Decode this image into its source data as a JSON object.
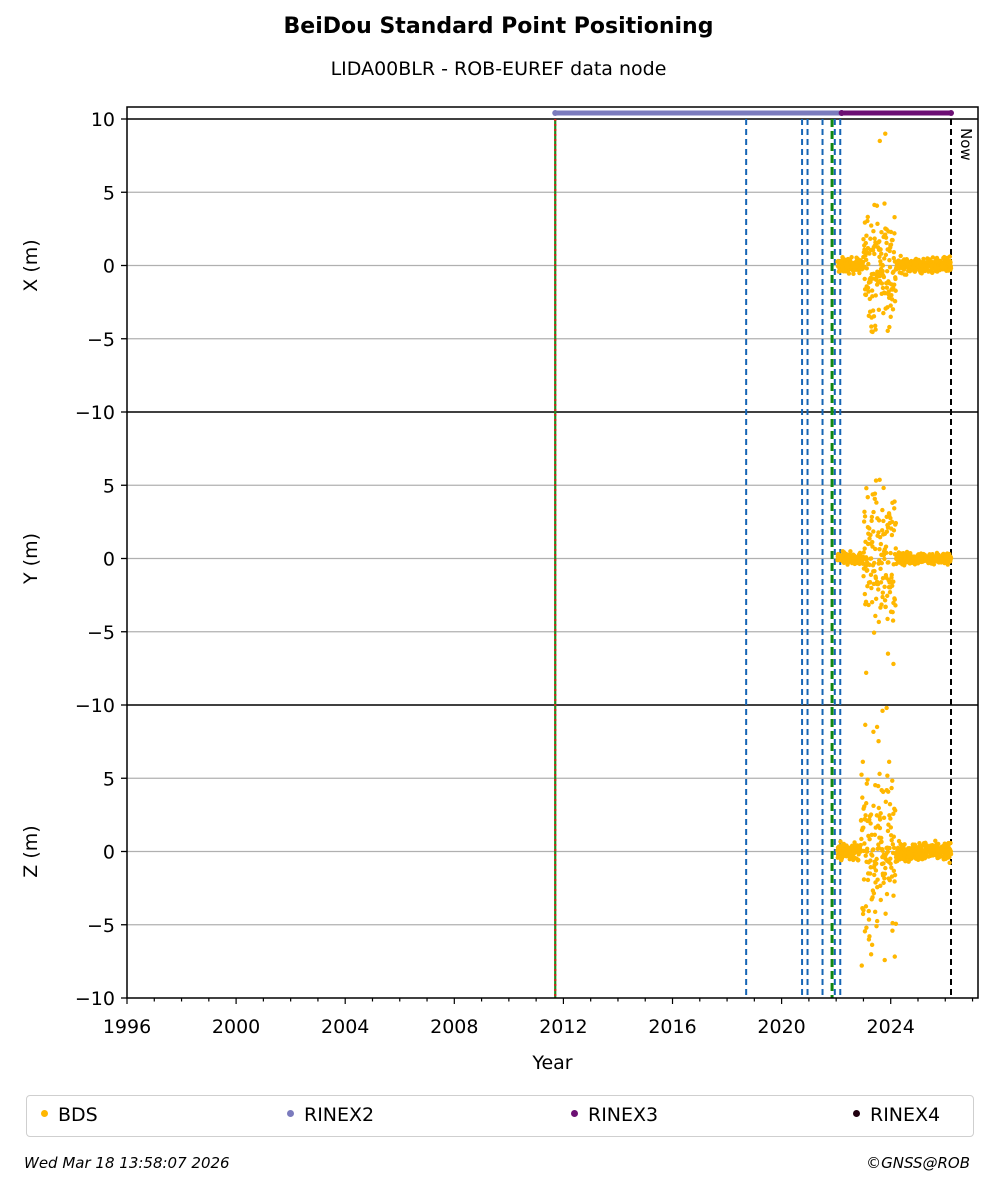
{
  "title": "BeiDou Standard Point Positioning",
  "subtitle": "LIDA00BLR - ROB-EUREF data node",
  "footer": {
    "timestamp": "Wed Mar 18 13:58:07 2026",
    "copyright": "©GNSS@ROB"
  },
  "legend": [
    {
      "label": "BDS",
      "color": "#ffb700"
    },
    {
      "label": "RINEX2",
      "color": "#7b7bbd"
    },
    {
      "label": "RINEX3",
      "color": "#6c0f73"
    },
    {
      "label": "RINEX4",
      "color": "#200010"
    }
  ],
  "now_label": "Now",
  "chart_data": {
    "type": "scatter",
    "title": "BeiDou Standard Point Positioning",
    "subtitle": "LIDA00BLR - ROB-EUREF data node",
    "xlabel": "Year",
    "xlim": [
      1996,
      2027.2
    ],
    "x_ticks": [
      "1996",
      "2000",
      "2004",
      "2008",
      "2012",
      "2016",
      "2020",
      "2024"
    ],
    "grid": "horizontal",
    "legend_position": "bottom",
    "panels": [
      {
        "ylabel": "X (m)",
        "ylim": [
          -10,
          10
        ],
        "y_ticks": [
          "10",
          "5",
          "0",
          "−5",
          "−10"
        ]
      },
      {
        "ylabel": "Y (m)",
        "ylim": [
          -10,
          10
        ],
        "y_ticks": [
          "5",
          "0",
          "−5",
          "−10"
        ]
      },
      {
        "ylabel": "Z (m)",
        "ylim": [
          -10,
          10
        ],
        "y_ticks": [
          "5",
          "0",
          "−5",
          "−10"
        ]
      }
    ],
    "data_availability": {
      "RINEX2": [
        2011.7,
        2022.2
      ],
      "RINEX3": [
        2022.2,
        2026.21
      ]
    },
    "event_lines": [
      {
        "x": 2011.7,
        "style": "red-green dotted"
      },
      {
        "x": 2018.7,
        "style": "blue dashed"
      },
      {
        "x": 2020.75,
        "style": "blue dashed"
      },
      {
        "x": 2020.95,
        "style": "blue dashed"
      },
      {
        "x": 2021.5,
        "style": "blue dashed"
      },
      {
        "x": 2021.85,
        "style": "green dashed"
      },
      {
        "x": 2021.95,
        "style": "blue dashed"
      },
      {
        "x": 2022.15,
        "style": "blue dashed"
      },
      {
        "x": 2026.21,
        "style": "black dashed (Now)"
      }
    ],
    "series": [
      {
        "name": "BDS",
        "x_range": [
          2022.05,
          2026.21
        ],
        "X": {
          "center": 0,
          "spread_calm": 0.25,
          "spread_active": 2.0,
          "active_range": [
            2023.0,
            2024.2
          ],
          "extremes": [
            [
              2023.8,
              9.0
            ],
            [
              2023.95,
              -4.2
            ],
            [
              2023.3,
              -4.5
            ],
            [
              2023.6,
              8.5
            ],
            [
              2024.0,
              -3.5
            ]
          ]
        },
        "Y": {
          "center": 0,
          "spread_calm": 0.2,
          "spread_active": 2.2,
          "active_range": [
            2023.0,
            2024.2
          ],
          "extremes": [
            [
              2024.05,
              2.5
            ],
            [
              2023.1,
              -7.8
            ],
            [
              2024.1,
              -7.2
            ],
            [
              2023.9,
              -6.5
            ]
          ]
        },
        "Z": {
          "center": 0,
          "spread_calm": 0.3,
          "spread_active": 3.0,
          "active_range": [
            2022.9,
            2024.2
          ],
          "extremes": [
            [
              2023.85,
              9.8
            ],
            [
              2023.7,
              9.6
            ],
            [
              2023.2,
              -6.0
            ],
            [
              2023.5,
              8.5
            ],
            [
              2023.0,
              -4.0
            ]
          ]
        }
      }
    ]
  }
}
